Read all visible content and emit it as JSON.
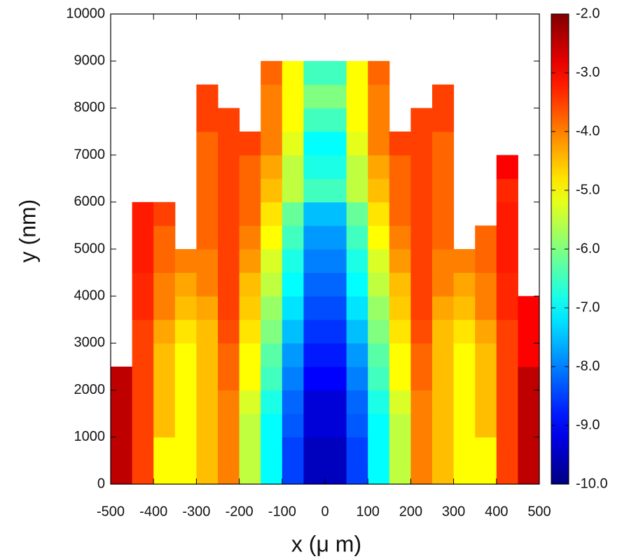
{
  "chart_data": {
    "type": "heatmap",
    "colormap": "jet",
    "xlabel": "x (μ m)",
    "ylabel": "y (nm)",
    "xlim": [
      -500,
      500
    ],
    "xticks": [
      -500,
      -400,
      -300,
      -200,
      -100,
      0,
      100,
      200,
      300,
      400,
      500
    ],
    "ylim": [
      0,
      10000
    ],
    "yticks": [
      0,
      1000,
      2000,
      3000,
      4000,
      5000,
      6000,
      7000,
      8000,
      9000,
      10000
    ],
    "zlim": [
      -10,
      -2
    ],
    "zticks": [
      {
        "value": -10,
        "label": "-10.0"
      },
      {
        "value": -9,
        "label": "-9.0"
      },
      {
        "value": -8,
        "label": "-8.0"
      },
      {
        "value": -7,
        "label": "-7.0"
      },
      {
        "value": -6,
        "label": "-6.0"
      },
      {
        "value": -5,
        "label": "-5.0"
      },
      {
        "value": -4,
        "label": "-4.0"
      },
      {
        "value": -3,
        "label": "-3.0"
      },
      {
        "value": -2,
        "label": "-2.0"
      }
    ],
    "x_bins": [
      -500,
      -450,
      -400,
      -350,
      -300,
      -250,
      -200,
      -150,
      -100,
      -50,
      0,
      50,
      100,
      150,
      200,
      250,
      300,
      350,
      400,
      450,
      500
    ],
    "y_bins": [
      0,
      500,
      1000,
      1500,
      2000,
      2500,
      3000,
      3500,
      4000,
      4500,
      5000,
      5500,
      6000,
      6500,
      7000,
      7500,
      8000,
      8500,
      9000
    ],
    "values": [
      [
        -2.5,
        -3.5,
        -5,
        -5,
        -4.5,
        -4,
        -5.5,
        -7,
        -8.5,
        -9.5,
        -9.5,
        -8.5,
        -7,
        -5.5,
        -4,
        -4.5,
        -5,
        -5,
        -3.5,
        -2.5
      ],
      [
        -2.5,
        -3.5,
        -5,
        -5,
        -4.5,
        -4,
        -5.5,
        -7,
        -8.5,
        -9.5,
        -9.5,
        -8.5,
        -7,
        -5.5,
        -4,
        -4.5,
        -5,
        -5,
        -3.5,
        -2.5
      ],
      [
        -2.5,
        -3.5,
        -4.5,
        -5,
        -4.5,
        -4,
        -5.5,
        -7,
        -8.3,
        -9.3,
        -9.3,
        -8.3,
        -7,
        -5.5,
        -4,
        -4.5,
        -5,
        -4.5,
        -3.5,
        -2.5
      ],
      [
        -2.5,
        -3.5,
        -4.5,
        -5,
        -4.5,
        -4,
        -5.3,
        -6.8,
        -8.2,
        -9.3,
        -9.3,
        -8.2,
        -6.8,
        -5.3,
        -4,
        -4.5,
        -5,
        -4.5,
        -3.5,
        -2.5
      ],
      [
        -2.5,
        -3.5,
        -4.5,
        -5,
        -4.5,
        -3.8,
        -5,
        -6.5,
        -8,
        -9,
        -9,
        -8,
        -6.5,
        -5,
        -3.8,
        -4.5,
        -5,
        -4.5,
        -3.5,
        -2.5
      ],
      [
        null,
        -3.5,
        -4.5,
        -5,
        -4.5,
        -3.8,
        -5,
        -6.3,
        -7.8,
        -8.8,
        -8.8,
        -7.8,
        -6.3,
        -5,
        -3.8,
        -4.5,
        -5,
        -4.5,
        -3.5,
        -3
      ],
      [
        null,
        -3.5,
        -4.3,
        -4.8,
        -4.5,
        -3.6,
        -4.8,
        -6,
        -7.5,
        -8.6,
        -8.6,
        -7.5,
        -6,
        -4.8,
        -3.6,
        -4.5,
        -4.8,
        -4.3,
        -3.5,
        -3
      ],
      [
        null,
        -3.3,
        -4,
        -4.5,
        -4.3,
        -3.5,
        -4.6,
        -5.8,
        -7.2,
        -8.4,
        -8.4,
        -7.2,
        -5.8,
        -4.6,
        -3.5,
        -4.3,
        -4.5,
        -4,
        -3.3,
        -3
      ],
      [
        null,
        -3.3,
        -4,
        -4.3,
        -4,
        -3.5,
        -4.5,
        -5.5,
        -7,
        -8.2,
        -8.2,
        -7,
        -5.5,
        -4.5,
        -3.5,
        -4,
        -4.3,
        -4,
        -3.3,
        null
      ],
      [
        null,
        -3.2,
        -3.8,
        -4,
        -4,
        -3.5,
        -4.2,
        -5.3,
        -6.8,
        -8,
        -8,
        -6.8,
        -5.3,
        -4.2,
        -3.5,
        -4,
        -4,
        -3.8,
        -3.2,
        null
      ],
      [
        null,
        -3.2,
        -3.8,
        null,
        -3.8,
        -3.5,
        -4,
        -5,
        -6.5,
        -7.8,
        -7.8,
        -6.5,
        -5,
        -4,
        -3.5,
        -3.8,
        null,
        -3.8,
        -3.2,
        null
      ],
      [
        null,
        -3.2,
        -3.5,
        null,
        -3.8,
        -3.5,
        -3.8,
        -4.8,
        -6.2,
        -7.5,
        -7.5,
        -6.2,
        -4.8,
        -3.8,
        -3.5,
        -3.8,
        null,
        null,
        -3.2,
        null
      ],
      [
        null,
        null,
        null,
        null,
        -3.8,
        -3.5,
        -3.8,
        -4.5,
        -5.5,
        -6.5,
        -6.5,
        -5.5,
        -4.5,
        -3.8,
        -3.5,
        -3.8,
        null,
        null,
        -3.3,
        null
      ],
      [
        null,
        null,
        null,
        null,
        -3.8,
        -3.5,
        -3.8,
        -4.3,
        -5.5,
        -6.8,
        -6.8,
        -5.5,
        -4.3,
        -3.8,
        -3.5,
        -3.8,
        null,
        null,
        -3,
        null
      ],
      [
        null,
        null,
        null,
        null,
        -3.8,
        -3.5,
        -3.5,
        -4,
        -5.2,
        -7,
        -7,
        -5.2,
        -4,
        -3.5,
        -3.5,
        -3.8,
        null,
        null,
        null,
        null
      ],
      [
        null,
        null,
        null,
        null,
        -3.5,
        -3.5,
        null,
        -4,
        -5,
        -6.5,
        -6.5,
        -5,
        -4,
        null,
        -3.5,
        -3.5,
        null,
        null,
        null,
        null
      ],
      [
        null,
        null,
        null,
        null,
        -3.5,
        null,
        null,
        -4,
        -5,
        -6,
        -6,
        -5,
        -4,
        null,
        null,
        -3.5,
        null,
        null,
        null,
        null
      ],
      [
        null,
        null,
        null,
        null,
        null,
        null,
        null,
        -3.8,
        -5,
        -6.5,
        -6.5,
        -5,
        -3.8,
        null,
        null,
        null,
        null,
        null,
        null,
        null
      ]
    ]
  }
}
